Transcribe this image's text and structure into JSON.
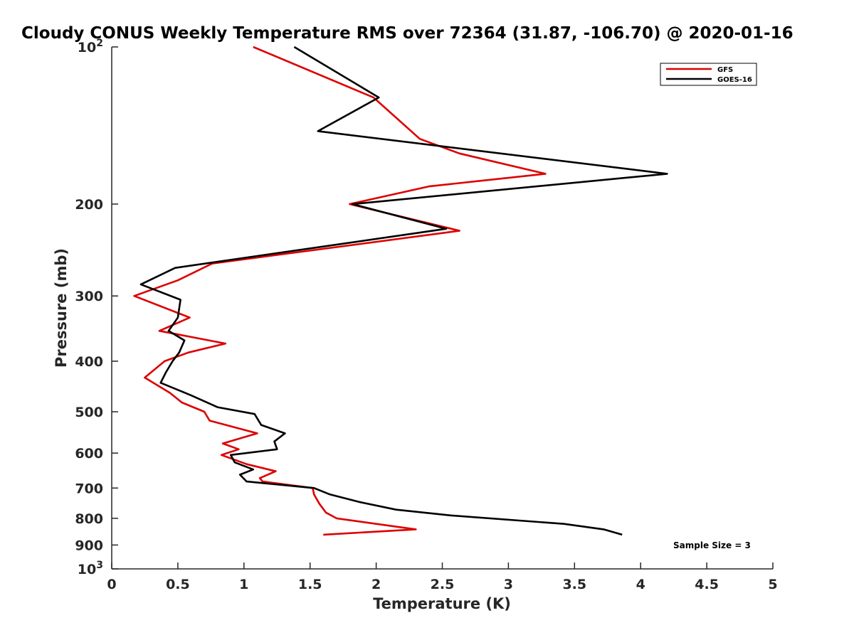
{
  "chart_data": {
    "type": "line",
    "title": "Cloudy CONUS Weekly Temperature RMS over 72364 (31.87, -106.70) @ 2020-01-16",
    "xlabel": "Temperature (K)",
    "ylabel": "Pressure (mb)",
    "xlim": [
      0,
      5
    ],
    "ylim": [
      100,
      1000
    ],
    "yscale": "log",
    "y_reversed": true,
    "x_ticks": [
      "0",
      "0.5",
      "1",
      "1.5",
      "2",
      "2.5",
      "3",
      "3.5",
      "4",
      "4.5",
      "5"
    ],
    "y_ticks": [
      {
        "value": 100,
        "base": "10",
        "exp": "2"
      },
      {
        "value": 200,
        "label": "200"
      },
      {
        "value": 300,
        "label": "300"
      },
      {
        "value": 400,
        "label": "400"
      },
      {
        "value": 500,
        "label": "500"
      },
      {
        "value": 600,
        "label": "600"
      },
      {
        "value": 700,
        "label": "700"
      },
      {
        "value": 800,
        "label": "800"
      },
      {
        "value": 900,
        "label": "900"
      },
      {
        "value": 1000,
        "base": "10",
        "exp": "3"
      }
    ],
    "grid": false,
    "legend_position": "top-right",
    "annotation": "Sample Size = 3",
    "series": [
      {
        "name": "GFS",
        "color": "#dd0000",
        "points": [
          [
            1.07,
            100
          ],
          [
            1.98,
            125
          ],
          [
            2.33,
            150
          ],
          [
            2.63,
            160
          ],
          [
            3.28,
            175
          ],
          [
            2.4,
            185
          ],
          [
            1.8,
            200
          ],
          [
            2.63,
            225
          ],
          [
            0.76,
            260
          ],
          [
            0.5,
            280
          ],
          [
            0.17,
            300
          ],
          [
            0.59,
            330
          ],
          [
            0.36,
            350
          ],
          [
            0.86,
            370
          ],
          [
            0.58,
            385
          ],
          [
            0.4,
            400
          ],
          [
            0.25,
            430
          ],
          [
            0.44,
            460
          ],
          [
            0.53,
            480
          ],
          [
            0.7,
            500
          ],
          [
            0.74,
            520
          ],
          [
            1.1,
            550
          ],
          [
            0.84,
            575
          ],
          [
            0.96,
            590
          ],
          [
            0.83,
            605
          ],
          [
            1.02,
            630
          ],
          [
            1.24,
            650
          ],
          [
            1.12,
            670
          ],
          [
            1.14,
            680
          ],
          [
            1.52,
            700
          ],
          [
            1.53,
            720
          ],
          [
            1.57,
            750
          ],
          [
            1.62,
            780
          ],
          [
            1.7,
            800
          ],
          [
            2.3,
            840
          ],
          [
            1.6,
            860
          ]
        ]
      },
      {
        "name": "GOES-16",
        "color": "#000000",
        "points": [
          [
            1.38,
            100
          ],
          [
            2.02,
            125
          ],
          [
            1.56,
            145
          ],
          [
            4.2,
            175
          ],
          [
            1.82,
            200
          ],
          [
            2.53,
            223
          ],
          [
            0.48,
            265
          ],
          [
            0.22,
            285
          ],
          [
            0.52,
            305
          ],
          [
            0.5,
            330
          ],
          [
            0.43,
            350
          ],
          [
            0.55,
            365
          ],
          [
            0.51,
            385
          ],
          [
            0.46,
            400
          ],
          [
            0.41,
            420
          ],
          [
            0.37,
            440
          ],
          [
            0.6,
            465
          ],
          [
            0.8,
            490
          ],
          [
            1.08,
            505
          ],
          [
            1.13,
            530
          ],
          [
            1.31,
            550
          ],
          [
            1.23,
            570
          ],
          [
            1.25,
            590
          ],
          [
            0.9,
            605
          ],
          [
            0.93,
            625
          ],
          [
            1.07,
            645
          ],
          [
            0.97,
            660
          ],
          [
            1.02,
            680
          ],
          [
            1.53,
            700
          ],
          [
            1.65,
            720
          ],
          [
            1.88,
            745
          ],
          [
            2.15,
            770
          ],
          [
            2.57,
            790
          ],
          [
            3.42,
            820
          ],
          [
            3.72,
            840
          ],
          [
            3.86,
            860
          ]
        ]
      }
    ]
  }
}
